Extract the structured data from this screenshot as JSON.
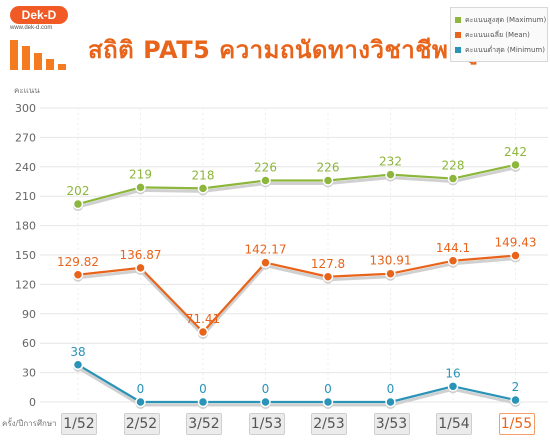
{
  "logo": {
    "brand": "Dek-D",
    "url": "www.dek-d.com"
  },
  "title": "สถิติ PAT5 ความถนัดทางวิชาชีพครู",
  "legend": {
    "items": [
      {
        "label": "คะแนนสูงสุด (Maximum)",
        "color": "#8cb63c"
      },
      {
        "label": "คะแนนเฉลี่ย (Mean)",
        "color": "#e8641b"
      },
      {
        "label": "คะแนนต่ำสุด (Minimum)",
        "color": "#2a93b8"
      }
    ]
  },
  "chart_data": {
    "type": "line",
    "title": "สถิติ PAT5 ความถนัดทางวิชาชีพครู",
    "ylabel": "คะแนน",
    "xlabel": "ครั้ง/ปีการศึกษา",
    "categories": [
      "1/52",
      "2/52",
      "3/52",
      "1/53",
      "2/53",
      "3/53",
      "1/54",
      "1/55"
    ],
    "ylim": [
      0,
      300
    ],
    "yticks": [
      0,
      30,
      60,
      90,
      120,
      150,
      180,
      210,
      240,
      270,
      300
    ],
    "grid": true,
    "legend_position": "top-right",
    "highlight_category": "1/55",
    "series": [
      {
        "name": "คะแนนสูงสุด (Maximum)",
        "color": "#8cb63c",
        "values": [
          202,
          219,
          218,
          226,
          226,
          232,
          228,
          242
        ],
        "labels": [
          "202",
          "219",
          "218",
          "226",
          "226",
          "232",
          "228",
          "242"
        ]
      },
      {
        "name": "คะแนนเฉลี่ย (Mean)",
        "color": "#e8641b",
        "values": [
          129.82,
          136.87,
          71.41,
          142.17,
          127.8,
          130.91,
          144.1,
          149.43
        ],
        "labels": [
          "129.82",
          "136.87",
          "71.41",
          "142.17",
          "127.8",
          "130.91",
          "144.1",
          "149.43"
        ]
      },
      {
        "name": "คะแนนต่ำสุด (Minimum)",
        "color": "#2a93b8",
        "values": [
          38,
          0,
          0,
          0,
          0,
          0,
          16,
          2
        ],
        "labels": [
          "38",
          "0",
          "0",
          "0",
          "0",
          "0",
          "16",
          "2"
        ]
      }
    ]
  }
}
